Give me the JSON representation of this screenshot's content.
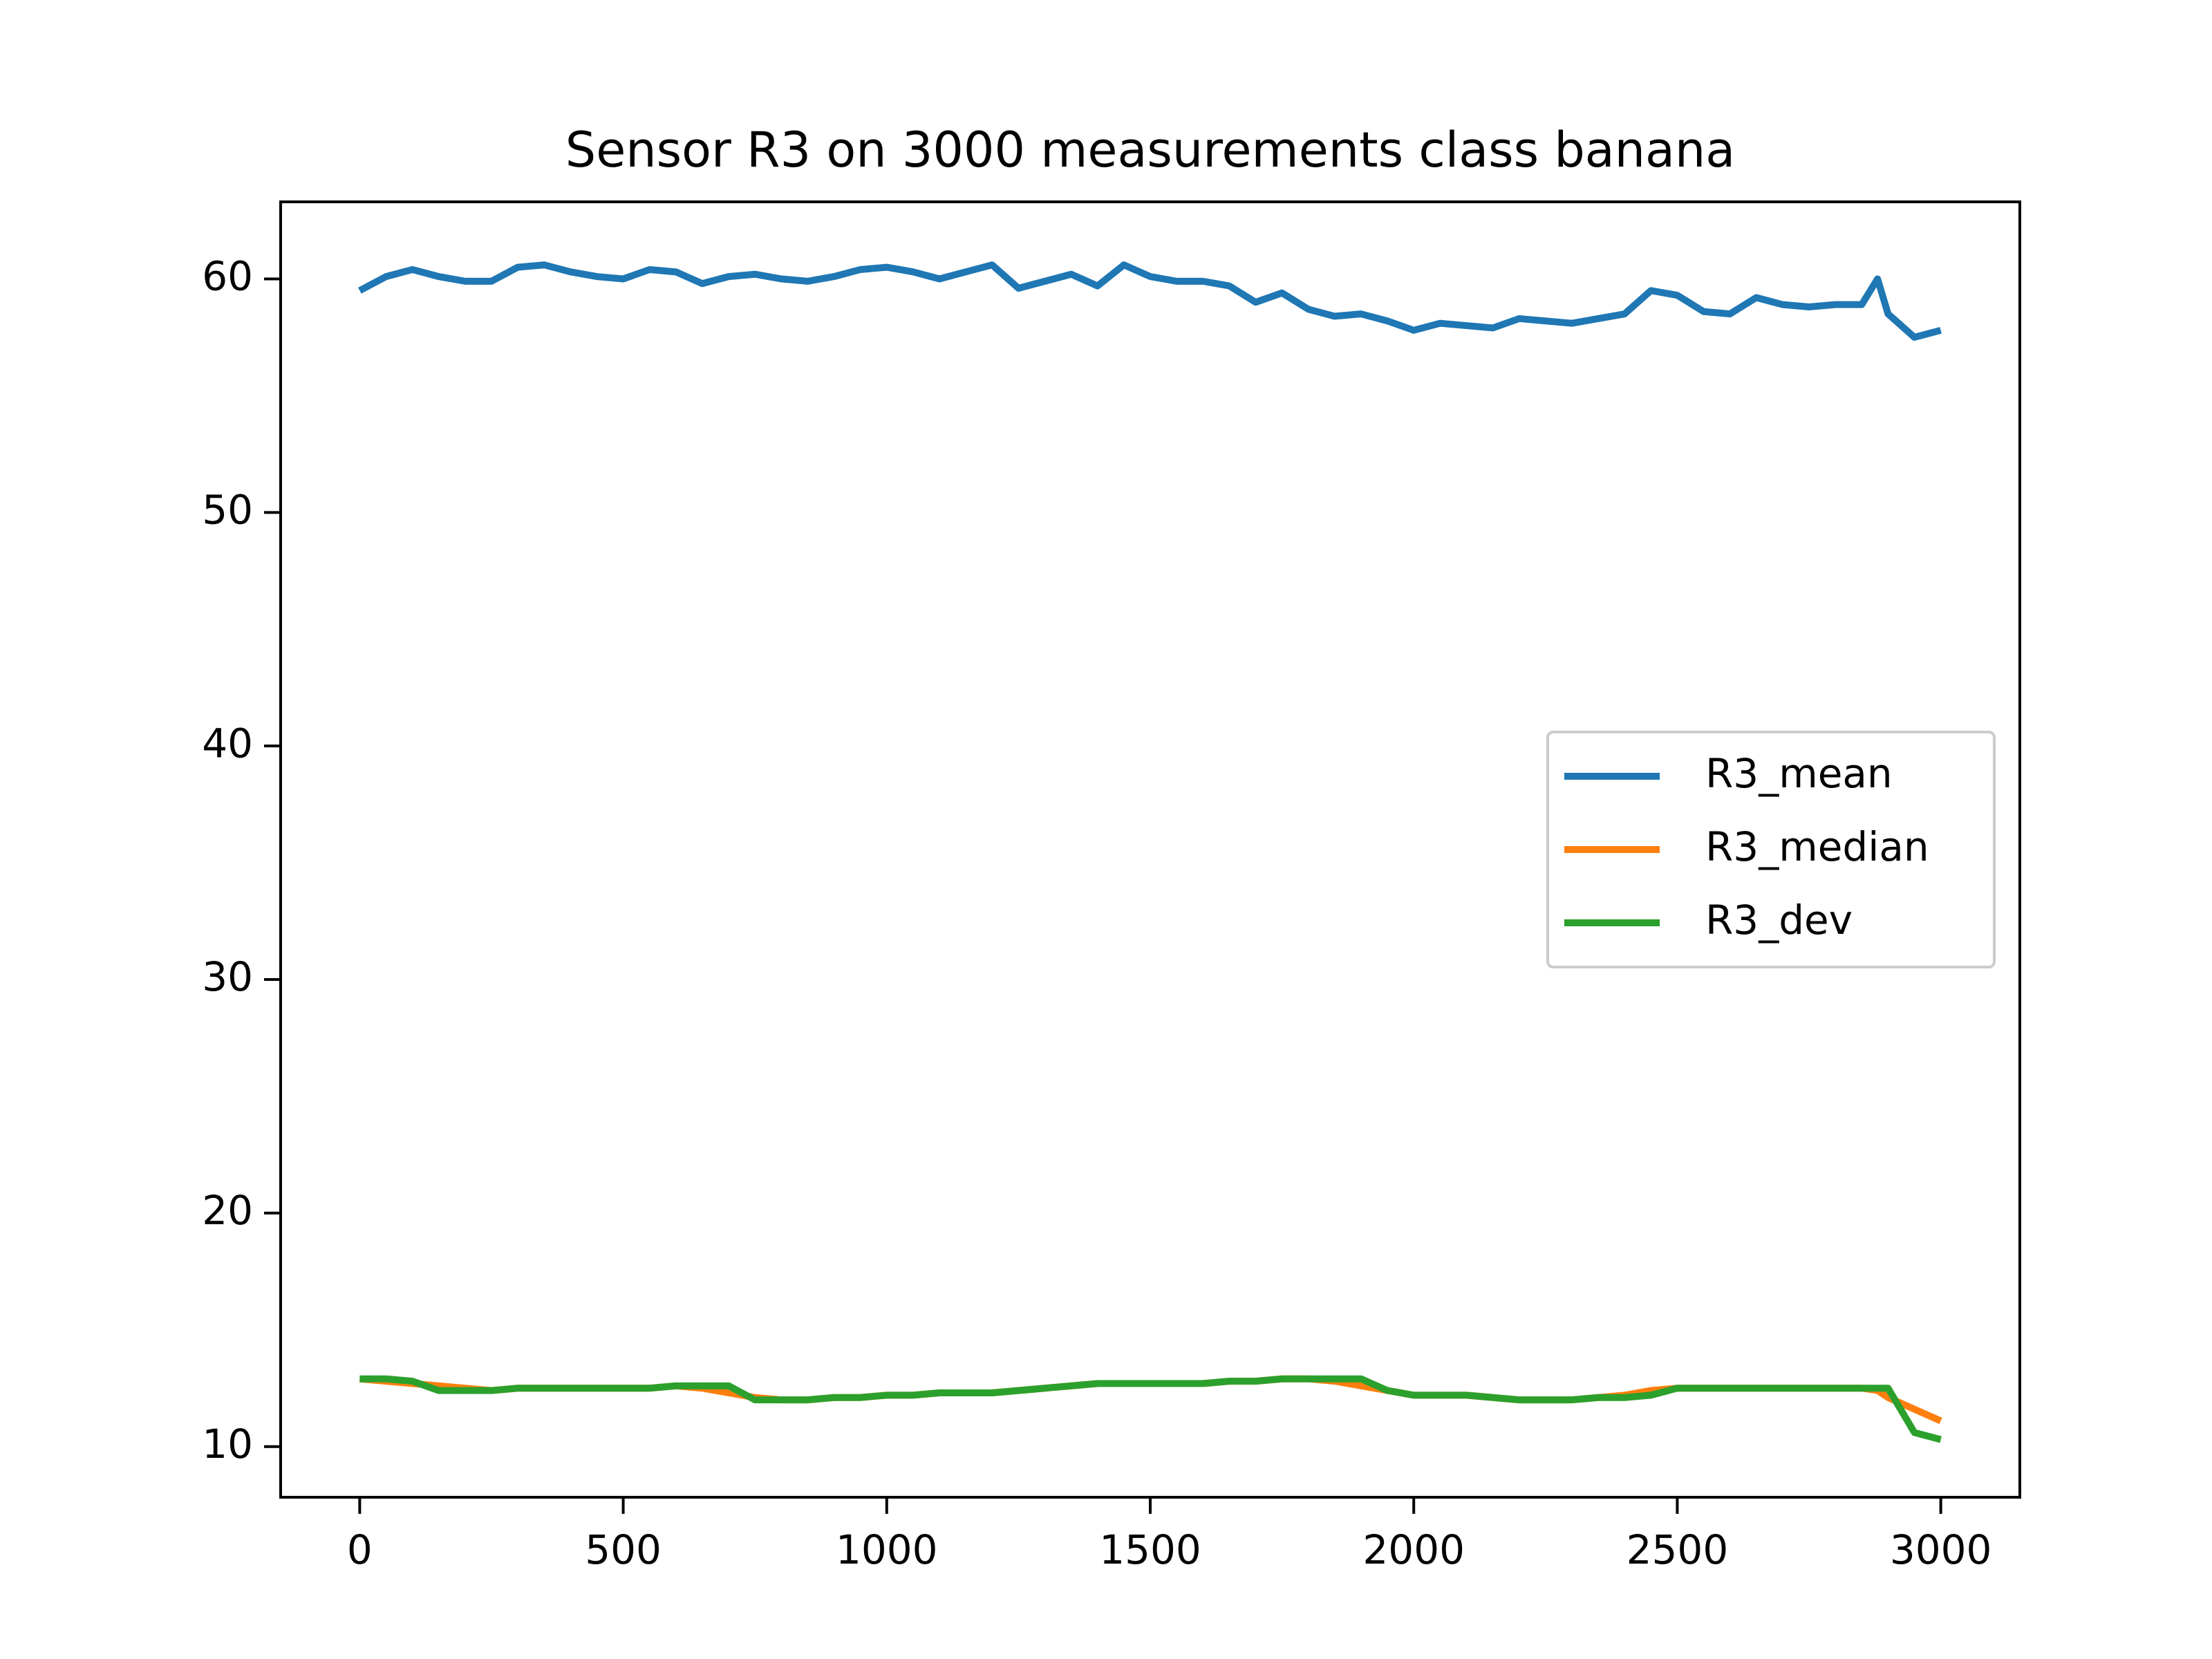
{
  "chart_data": {
    "type": "line",
    "title": "Sensor R3 on 3000 measurements class banana",
    "x": [
      0,
      50,
      100,
      150,
      200,
      250,
      300,
      350,
      400,
      450,
      500,
      550,
      600,
      650,
      700,
      750,
      800,
      850,
      900,
      950,
      1000,
      1050,
      1100,
      1150,
      1200,
      1250,
      1300,
      1350,
      1400,
      1450,
      1500,
      1550,
      1600,
      1650,
      1700,
      1750,
      1800,
      1850,
      1900,
      1950,
      2000,
      2050,
      2100,
      2150,
      2200,
      2250,
      2300,
      2350,
      2400,
      2450,
      2500,
      2550,
      2600,
      2650,
      2700,
      2750,
      2800,
      2850,
      2880,
      2900,
      2950,
      3000
    ],
    "series": [
      {
        "name": "R3_mean",
        "color": "#1f77b4",
        "values": [
          59.5,
          60.1,
          60.4,
          60.1,
          59.9,
          59.9,
          60.5,
          60.6,
          60.3,
          60.1,
          60.0,
          60.4,
          60.3,
          59.8,
          60.1,
          60.2,
          60.0,
          59.9,
          60.1,
          60.4,
          60.5,
          60.3,
          60.0,
          60.3,
          60.6,
          59.6,
          59.9,
          60.2,
          59.7,
          60.6,
          60.1,
          59.9,
          59.9,
          59.7,
          59.0,
          59.4,
          58.7,
          58.4,
          58.5,
          58.2,
          57.8,
          58.1,
          58.0,
          57.9,
          58.3,
          58.2,
          58.1,
          58.3,
          58.5,
          59.5,
          59.3,
          58.6,
          58.5,
          59.2,
          58.9,
          58.8,
          58.9,
          58.9,
          60.0,
          58.5,
          57.5,
          57.8
        ]
      },
      {
        "name": "R3_median",
        "color": "#ff7f0e",
        "values": [
          12.9,
          12.8,
          12.7,
          12.6,
          12.5,
          12.4,
          12.5,
          12.5,
          12.5,
          12.5,
          12.5,
          12.5,
          12.6,
          12.5,
          12.3,
          12.1,
          12.0,
          12.0,
          12.1,
          12.1,
          12.2,
          12.2,
          12.3,
          12.3,
          12.3,
          12.4,
          12.5,
          12.6,
          12.7,
          12.7,
          12.7,
          12.7,
          12.7,
          12.8,
          12.8,
          12.9,
          12.9,
          12.8,
          12.6,
          12.4,
          12.2,
          12.2,
          12.2,
          12.1,
          12.0,
          12.0,
          12.0,
          12.1,
          12.2,
          12.4,
          12.5,
          12.5,
          12.5,
          12.5,
          12.5,
          12.5,
          12.5,
          12.5,
          12.4,
          12.1,
          11.6,
          11.1
        ]
      },
      {
        "name": "R3_dev",
        "color": "#2ca02c",
        "values": [
          12.9,
          12.9,
          12.8,
          12.4,
          12.4,
          12.4,
          12.5,
          12.5,
          12.5,
          12.5,
          12.5,
          12.5,
          12.6,
          12.6,
          12.6,
          12.0,
          12.0,
          12.0,
          12.1,
          12.1,
          12.2,
          12.2,
          12.3,
          12.3,
          12.3,
          12.4,
          12.5,
          12.6,
          12.7,
          12.7,
          12.7,
          12.7,
          12.7,
          12.8,
          12.8,
          12.9,
          12.9,
          12.9,
          12.9,
          12.4,
          12.2,
          12.2,
          12.2,
          12.1,
          12.0,
          12.0,
          12.0,
          12.1,
          12.1,
          12.2,
          12.5,
          12.5,
          12.5,
          12.5,
          12.5,
          12.5,
          12.5,
          12.5,
          12.5,
          12.5,
          10.6,
          10.3
        ]
      }
    ],
    "xlim": [
      -150,
      3150
    ],
    "xticks": [
      0,
      500,
      1000,
      1500,
      2000,
      2500,
      3000
    ],
    "ylim": [
      7.83,
      63.3
    ],
    "yticks": [
      10,
      20,
      30,
      40,
      50,
      60
    ],
    "grid": false,
    "legend": "center right"
  }
}
